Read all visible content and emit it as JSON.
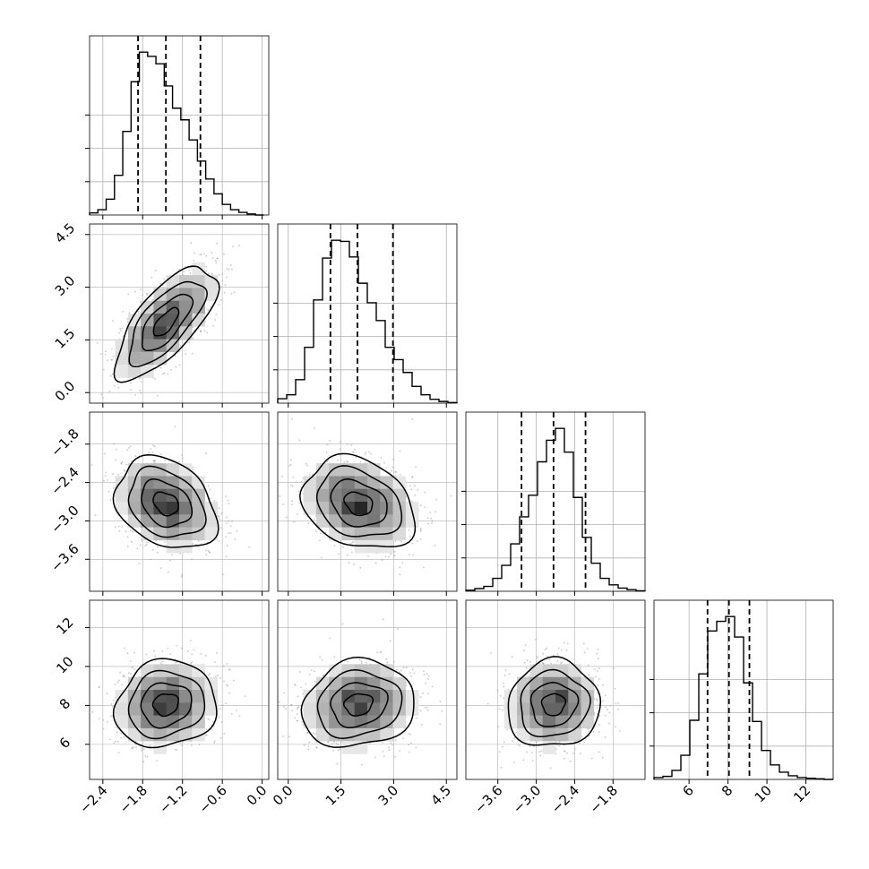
{
  "chart_data": {
    "type": "corner",
    "n_params": 4,
    "grid": true,
    "params": [
      {
        "index": 0,
        "range": [
          -2.6,
          0.1
        ],
        "ticks": [
          -2.4,
          -1.8,
          -1.2,
          -0.6,
          0.0
        ],
        "tick_labels": [
          "−2.4",
          "−1.8",
          "−1.2",
          "−0.6",
          "0.0"
        ],
        "quantiles": [
          -1.87,
          -1.45,
          -0.93
        ],
        "hist": {
          "bins": [
            -2.6,
            -2.475,
            -2.35,
            -2.225,
            -2.1,
            -1.975,
            -1.85,
            -1.725,
            -1.6,
            -1.475,
            -1.35,
            -1.225,
            -1.1,
            -0.975,
            -0.85,
            -0.725,
            -0.6,
            -0.475,
            -0.35,
            -0.225,
            -0.1,
            0.025
          ],
          "counts": [
            4,
            10,
            30,
            75,
            158,
            252,
            308,
            300,
            286,
            244,
            202,
            180,
            142,
            102,
            68,
            40,
            20,
            10,
            5,
            2,
            0
          ]
        }
      },
      {
        "index": 1,
        "range": [
          -0.3,
          4.8
        ],
        "ticks": [
          0.0,
          1.5,
          3.0,
          4.5
        ],
        "tick_labels": [
          "0.0",
          "1.5",
          "3.0",
          "4.5"
        ],
        "quantiles": [
          1.2,
          1.97,
          2.98
        ],
        "hist": {
          "bins": [
            -0.3,
            -0.045,
            0.21,
            0.465,
            0.72,
            0.975,
            1.23,
            1.485,
            1.74,
            1.995,
            2.25,
            2.505,
            2.76,
            3.015,
            3.27,
            3.525,
            3.78,
            4.035,
            4.29,
            4.545,
            4.8
          ],
          "counts": [
            8,
            15,
            42,
            100,
            185,
            260,
            292,
            290,
            262,
            215,
            180,
            148,
            100,
            78,
            55,
            30,
            15,
            7,
            3,
            1
          ]
        }
      },
      {
        "index": 2,
        "range": [
          -4.1,
          -1.3
        ],
        "ticks": [
          -3.6,
          -3.0,
          -2.4,
          -1.8
        ],
        "tick_labels": [
          "−3.6",
          "−3.0",
          "−2.4",
          "−1.8"
        ],
        "quantiles": [
          -3.23,
          -2.73,
          -2.23
        ],
        "hist": {
          "bins": [
            -4.1,
            -3.96,
            -3.82,
            -3.68,
            -3.54,
            -3.4,
            -3.26,
            -3.12,
            -2.98,
            -2.84,
            -2.7,
            -2.56,
            -2.42,
            -2.28,
            -2.14,
            -2.0,
            -1.86,
            -1.72,
            -1.58,
            -1.44,
            -1.3
          ],
          "counts": [
            2,
            5,
            9,
            24,
            48,
            88,
            138,
            178,
            240,
            280,
            302,
            258,
            174,
            100,
            52,
            24,
            12,
            6,
            3,
            1
          ]
        }
      },
      {
        "index": 3,
        "range": [
          4.2,
          13.4
        ],
        "ticks": [
          6,
          8,
          10,
          12
        ],
        "tick_labels": [
          "6",
          "8",
          "10",
          "12"
        ],
        "quantiles": [
          6.95,
          8.05,
          9.1
        ],
        "hist": {
          "bins": [
            4.2,
            4.66,
            5.12,
            5.58,
            6.04,
            6.5,
            6.96,
            7.42,
            7.88,
            8.34,
            8.8,
            9.26,
            9.72,
            10.18,
            10.64,
            11.1,
            11.56,
            12.02,
            12.48,
            12.94,
            13.4
          ],
          "counts": [
            3,
            5,
            15,
            40,
            98,
            175,
            246,
            262,
            270,
            236,
            160,
            96,
            48,
            24,
            12,
            6,
            3,
            2,
            1,
            0
          ]
        }
      }
    ],
    "joint": [
      {
        "x": 0,
        "y": 1,
        "mean": [
          -1.45,
          2.0
        ],
        "sd": [
          0.38,
          0.8
        ],
        "corr": 0.7
      },
      {
        "x": 0,
        "y": 2,
        "mean": [
          -1.45,
          -2.73
        ],
        "sd": [
          0.38,
          0.36
        ],
        "corr": -0.28
      },
      {
        "x": 1,
        "y": 2,
        "mean": [
          2.0,
          -2.73
        ],
        "sd": [
          0.8,
          0.36
        ],
        "corr": -0.25
      },
      {
        "x": 0,
        "y": 3,
        "mean": [
          -1.45,
          8.05
        ],
        "sd": [
          0.38,
          1.12
        ],
        "corr": 0.1
      },
      {
        "x": 1,
        "y": 3,
        "mean": [
          2.0,
          8.05
        ],
        "sd": [
          0.8,
          1.12
        ],
        "corr": 0.12
      },
      {
        "x": 2,
        "y": 3,
        "mean": [
          -2.73,
          8.05
        ],
        "sd": [
          0.36,
          1.12
        ],
        "corr": 0.05
      }
    ],
    "contour_levels_sigma": [
      0.5,
      1.0,
      1.5,
      2.0
    ],
    "colors": {
      "line": "#000000",
      "grid": "#b0b0b0",
      "scatter": "#9a9a9a",
      "density_dark": "#000000",
      "density_light": "#f2f2f2"
    }
  }
}
